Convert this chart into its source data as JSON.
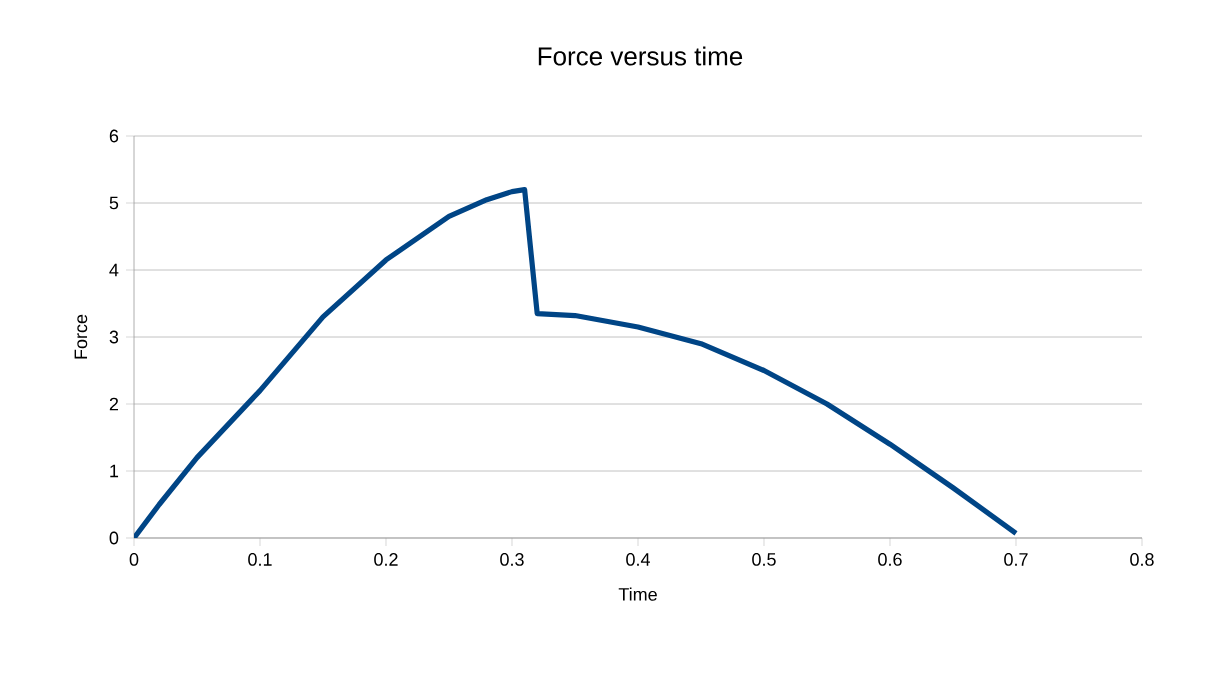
{
  "chart_data": {
    "type": "line",
    "title": "Force versus time",
    "xlabel": "Time",
    "ylabel": "Force",
    "x": [
      0,
      0.02,
      0.05,
      0.1,
      0.15,
      0.2,
      0.25,
      0.28,
      0.3,
      0.31,
      0.32,
      0.35,
      0.4,
      0.45,
      0.5,
      0.55,
      0.6,
      0.65,
      0.7
    ],
    "series": [
      {
        "color": "#004586",
        "values": [
          0,
          0.5,
          1.2,
          2.2,
          3.3,
          4.15,
          4.8,
          5.05,
          5.17,
          5.2,
          3.35,
          3.32,
          3.15,
          2.9,
          2.5,
          2.0,
          1.4,
          0.75,
          0.07
        ]
      }
    ],
    "xlim": [
      0,
      0.8
    ],
    "ylim": [
      0,
      6
    ],
    "xticks": [
      0,
      0.1,
      0.2,
      0.3,
      0.4,
      0.5,
      0.6,
      0.7,
      0.8
    ],
    "yticks": [
      0,
      1,
      2,
      3,
      4,
      5,
      6
    ],
    "grid": "y",
    "marker": "none",
    "line_style": "solid"
  }
}
